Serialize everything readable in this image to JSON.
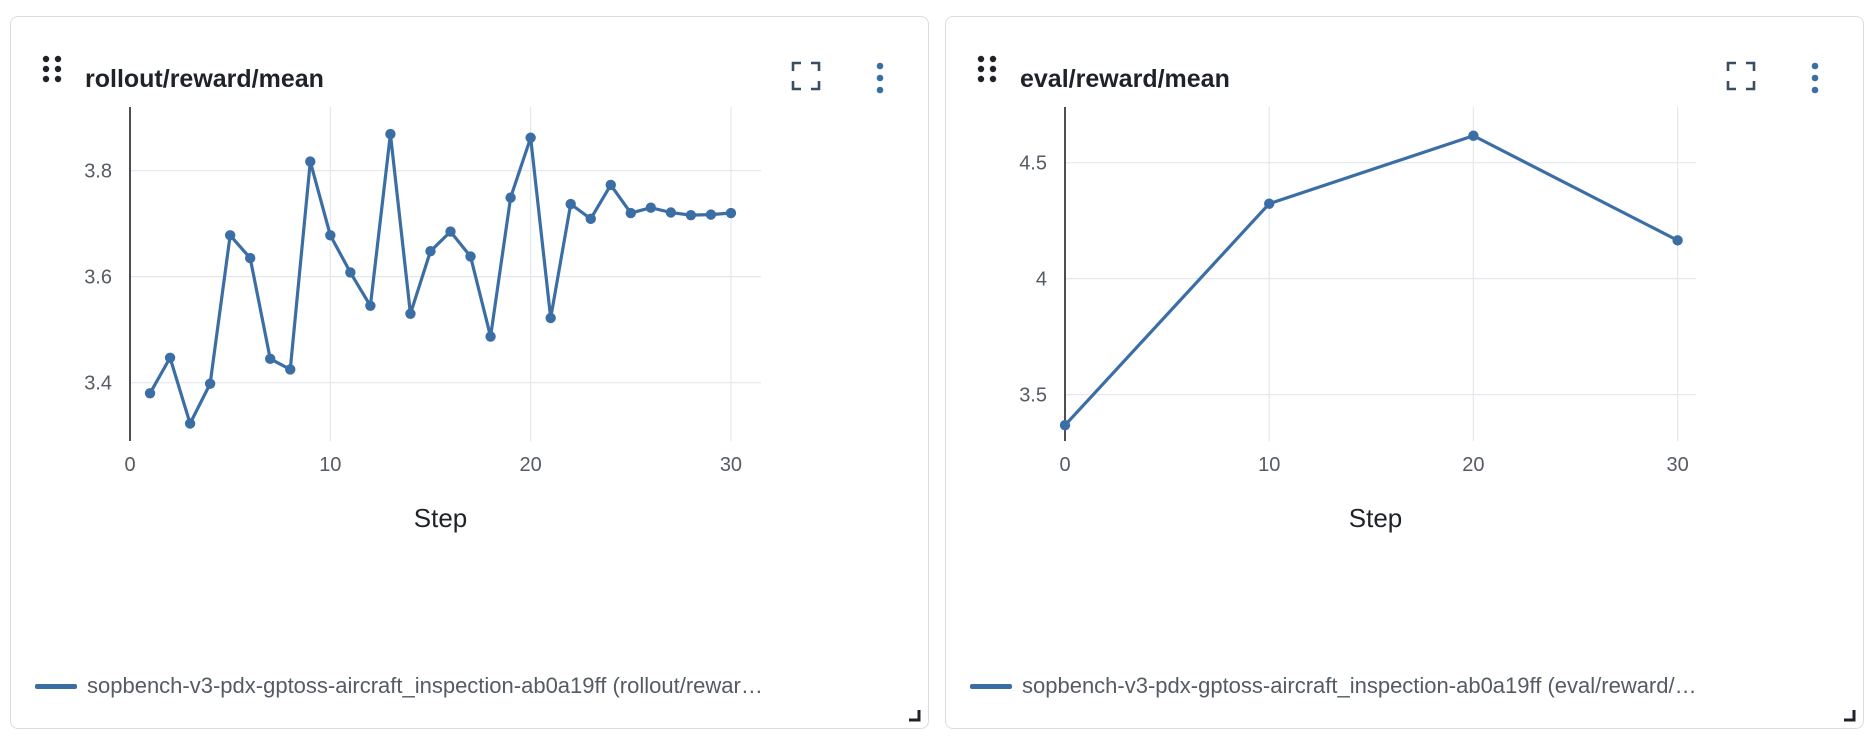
{
  "panels": [
    {
      "title": "rollout/reward/mean",
      "legend": "sopbench-v3-pdx-gptoss-aircraft_inspection-ab0a19ff (rollout/rewar…"
    },
    {
      "title": "eval/reward/mean",
      "legend": "sopbench-v3-pdx-gptoss-aircraft_inspection-ab0a19ff (eval/reward/…"
    }
  ],
  "icons": {
    "drag": "drag-handle-icon",
    "fullscreen": "fullscreen-icon",
    "menu": "more-vertical-icon",
    "resize": "resize-corner-icon"
  },
  "colors": {
    "series": "#3b6ea5",
    "grid": "#e4e7eb"
  },
  "chart_data": [
    {
      "type": "line",
      "title": "rollout/reward/mean",
      "xlabel": "Step",
      "ylabel": "",
      "xlim": [
        0,
        31.5
      ],
      "ylim": [
        3.29,
        3.92
      ],
      "xticks": [
        0,
        10,
        20,
        30
      ],
      "yticks": [
        3.4,
        3.6,
        3.8
      ],
      "ytick_labels": [
        "3.4",
        "3.6",
        "3.8"
      ],
      "grid": true,
      "legend_placement": "bottom",
      "series": [
        {
          "name": "sopbench-v3-pdx-gptoss-aircraft_inspection-ab0a19ff (rollout/rewar…",
          "x": [
            1,
            2,
            3,
            4,
            5,
            6,
            7,
            8,
            9,
            10,
            11,
            12,
            13,
            14,
            15,
            16,
            17,
            18,
            19,
            20,
            21,
            22,
            23,
            24,
            25,
            26,
            27,
            28,
            29,
            30
          ],
          "y": [
            3.38,
            3.447,
            3.323,
            3.398,
            3.678,
            3.635,
            3.445,
            3.425,
            3.817,
            3.678,
            3.608,
            3.545,
            3.869,
            3.53,
            3.648,
            3.685,
            3.638,
            3.487,
            3.749,
            3.862,
            3.522,
            3.737,
            3.709,
            3.773,
            3.72,
            3.73,
            3.721,
            3.716,
            3.717,
            3.72
          ]
        }
      ]
    },
    {
      "type": "line",
      "title": "eval/reward/mean",
      "xlabel": "Step",
      "ylabel": "",
      "xlim": [
        0,
        30.9
      ],
      "ylim": [
        3.3,
        4.74
      ],
      "xticks": [
        0,
        10,
        20,
        30
      ],
      "yticks": [
        3.5,
        4,
        4.5
      ],
      "ytick_labels": [
        "3.5",
        "4",
        "4.5"
      ],
      "grid": true,
      "legend_placement": "bottom",
      "series": [
        {
          "name": "sopbench-v3-pdx-gptoss-aircraft_inspection-ab0a19ff (eval/reward/…",
          "x": [
            0,
            10,
            20,
            30
          ],
          "y": [
            3.368,
            4.323,
            4.616,
            4.165
          ]
        }
      ]
    }
  ]
}
